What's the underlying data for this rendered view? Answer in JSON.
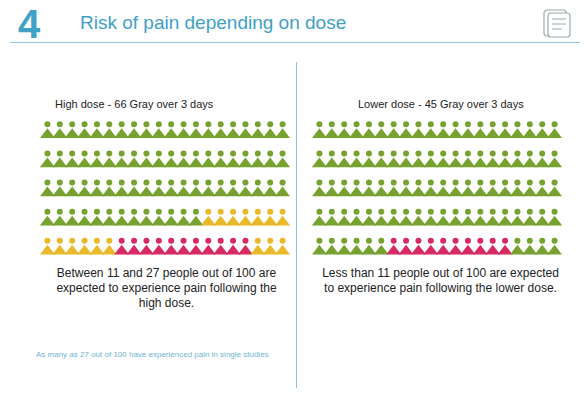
{
  "header": {
    "number": "4",
    "title": "Risk of pain depending on dose"
  },
  "chart_data": [
    {
      "type": "icon_array",
      "title": "High dose - 66 Gray over 3 days",
      "values": [
        73,
        13,
        11,
        3
      ],
      "colors": [
        "#78a22f",
        "#e8b92a",
        "#d62a62",
        "#e8b92a"
      ],
      "tick_labels": false,
      "caption": "Between 11 and 27 people out of 100 are expected to experience pain following the high dose."
    },
    {
      "type": "icon_array",
      "title": "Lower dose - 45 Gray over 3 days",
      "values": [
        86,
        10,
        4
      ],
      "colors": [
        "#78a22f",
        "#d62a62",
        "#78a22f"
      ],
      "tick_labels": false,
      "caption": "Less than 11 people out of 100 are expected to experience pain following the lower dose."
    }
  ],
  "footnote": "As many as 27 out of 100 have experienced pain in single studies"
}
